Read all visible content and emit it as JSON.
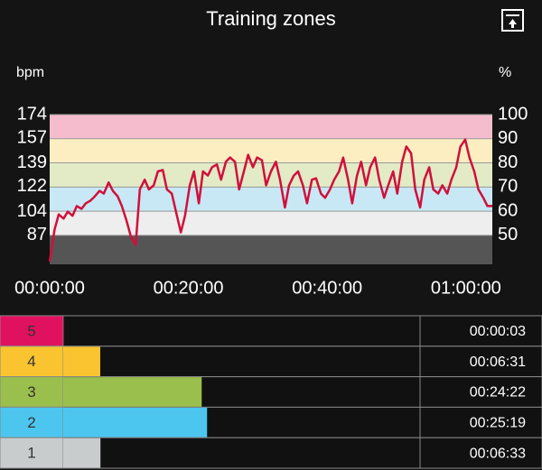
{
  "header": {
    "title": "Training zones"
  },
  "chart_data": {
    "type": "line",
    "ylabel": "bpm",
    "y2label": "%",
    "x": [
      0,
      0.7,
      1.3,
      2,
      2.6,
      3.3,
      3.9,
      4.6,
      5.2,
      5.9,
      6.5,
      7.2,
      7.8,
      8.5,
      9.1,
      9.8,
      10.4,
      11.1,
      11.7,
      12.4,
      13,
      13.7,
      14.3,
      15,
      15.6,
      16.3,
      16.9,
      17.6,
      18.2,
      18.9,
      19.5,
      20.2,
      20.8,
      21.5,
      22.1,
      22.8,
      23.4,
      24.1,
      24.7,
      25.4,
      26,
      26.7,
      27.3,
      28,
      28.6,
      29.3,
      29.9,
      30.6,
      31.2,
      31.9,
      32.6,
      33.2,
      33.9,
      34.5,
      35.2,
      35.8,
      36.5,
      37.1,
      37.8,
      38.4,
      39.1,
      39.7,
      40.4,
      41,
      41.7,
      42.3,
      43,
      43.6,
      44.3,
      44.9,
      45.6,
      46.2,
      46.9,
      47.5,
      48.2,
      48.8,
      49.5,
      50.1,
      50.8,
      51.4,
      52.1,
      52.7,
      53.4,
      54,
      54.7,
      55.3,
      56,
      56.6,
      57.3,
      57.9,
      58.6,
      59.2,
      59.9,
      60.5,
      61.2,
      61.8,
      62.5,
      63.1,
      63.8
    ],
    "values": [
      68,
      91,
      102,
      99,
      104,
      101,
      108,
      106,
      110,
      112,
      115,
      119,
      117,
      125,
      119,
      115,
      108,
      97,
      86,
      80,
      120,
      127,
      120,
      123,
      133,
      134,
      120,
      117,
      104,
      89,
      101,
      123,
      133,
      110,
      133,
      130,
      136,
      138,
      127,
      140,
      143,
      140,
      120,
      133,
      145,
      136,
      143,
      141,
      123,
      133,
      140,
      127,
      107,
      123,
      130,
      133,
      123,
      110,
      127,
      128,
      117,
      114,
      120,
      127,
      133,
      143,
      127,
      110,
      130,
      140,
      123,
      136,
      143,
      127,
      114,
      123,
      133,
      117,
      140,
      151,
      146,
      120,
      107,
      127,
      136,
      120,
      117,
      123,
      117,
      127,
      136,
      151,
      156,
      143,
      133,
      120,
      114,
      108,
      108
    ],
    "color": "#d0103a",
    "xlim": [
      0,
      63.8
    ],
    "xticks": [
      {
        "value": 0,
        "label": "00:00:00"
      },
      {
        "value": 20,
        "label": "00:20:00"
      },
      {
        "value": 40,
        "label": "00:40:00"
      },
      {
        "value": 60,
        "label": "01:00:00"
      }
    ],
    "ylim": [
      66,
      174
    ],
    "yticks": [
      174,
      157,
      139,
      122,
      104,
      87
    ],
    "y2lim": [
      38,
      100
    ],
    "y2ticks": [
      100,
      90,
      80,
      70,
      60,
      50
    ],
    "plot_background": "#555555",
    "bands": [
      {
        "range": [
          90,
          100
        ],
        "color": "#f4bccd"
      },
      {
        "range": [
          80,
          90
        ],
        "color": "#fdeec2"
      },
      {
        "range": [
          70,
          80
        ],
        "color": "#e2eac6"
      },
      {
        "range": [
          60,
          70
        ],
        "color": "#c8e8f5"
      },
      {
        "range": [
          50,
          60
        ],
        "color": "#eeeeee"
      }
    ]
  },
  "zones": {
    "rows": [
      {
        "label": "5",
        "duration": "00:00:03",
        "color": "#e0125f"
      },
      {
        "label": "4",
        "duration": "00:06:31",
        "color": "#f9c430"
      },
      {
        "label": "3",
        "duration": "00:24:22",
        "color": "#9bbf4c"
      },
      {
        "label": "2",
        "duration": "00:25:19",
        "color": "#4cc6ef"
      },
      {
        "label": "1",
        "duration": "00:06:33",
        "color": "#c8cccc"
      }
    ]
  }
}
